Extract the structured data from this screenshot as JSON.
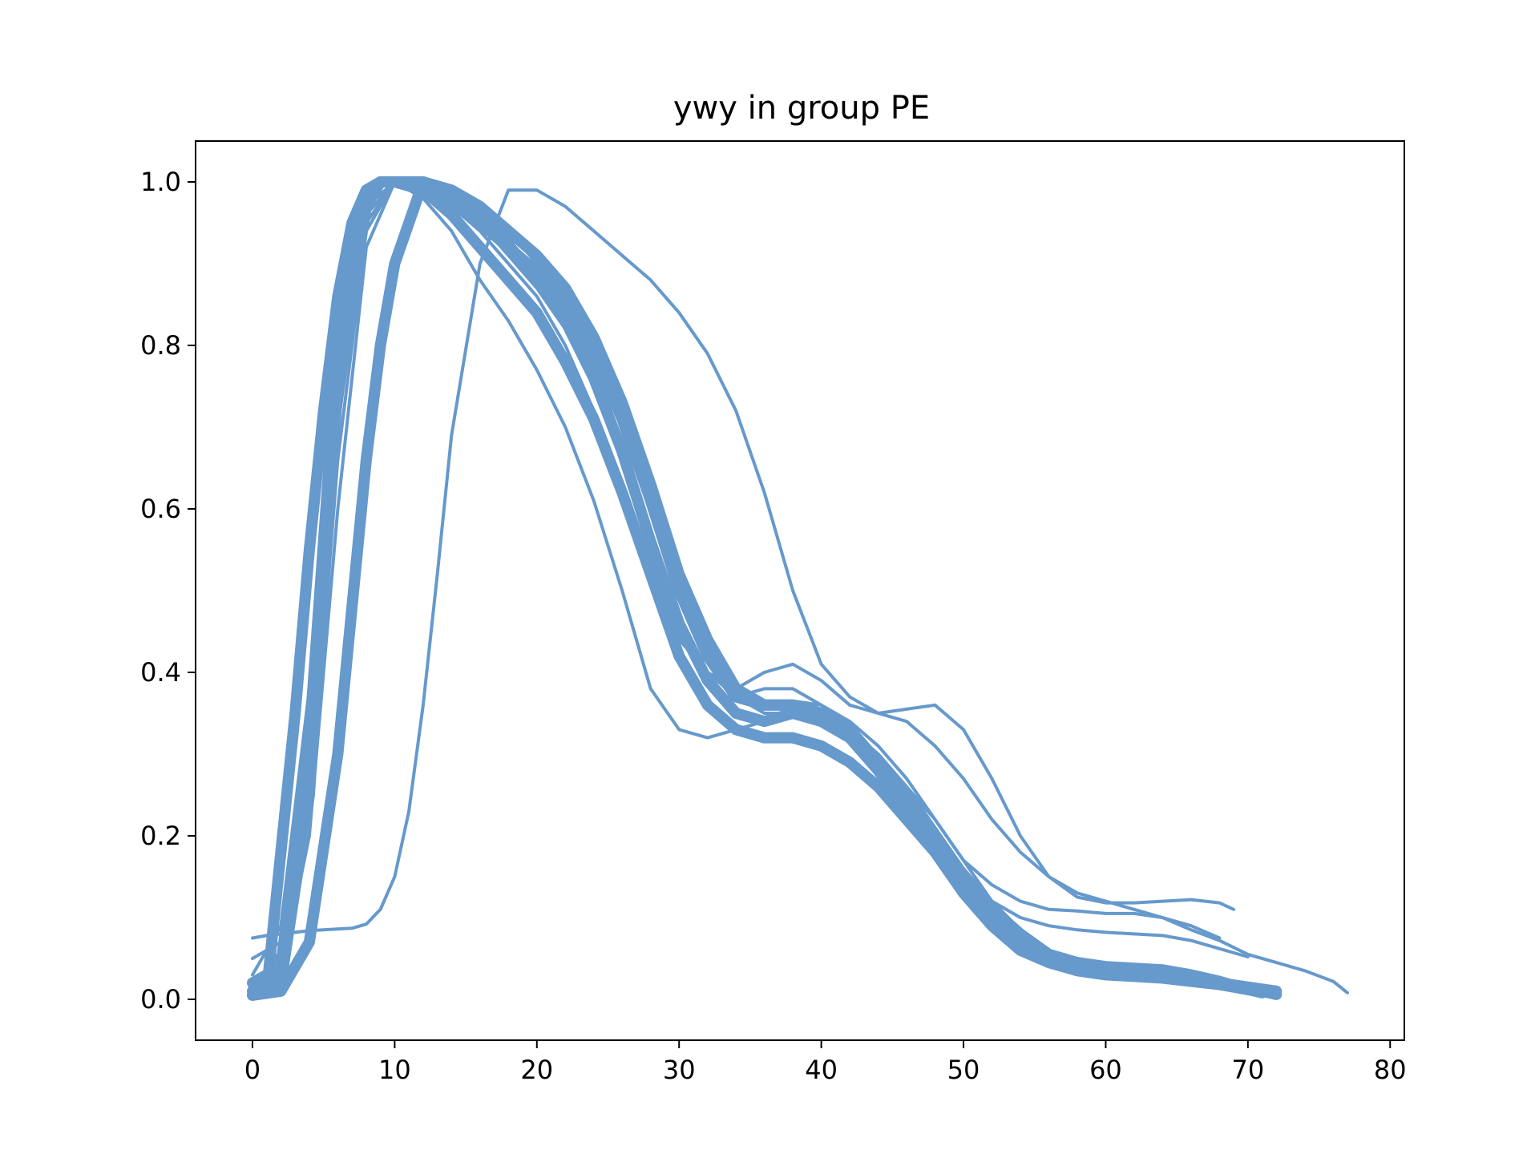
{
  "chart_data": {
    "type": "line",
    "title": "ywy in group PE",
    "xlabel": "",
    "ylabel": "",
    "xlim": [
      -4,
      81
    ],
    "ylim": [
      -0.05,
      1.05
    ],
    "xticks": [
      0,
      10,
      20,
      30,
      40,
      50,
      60,
      70,
      80
    ],
    "yticks": [
      0.0,
      0.2,
      0.4,
      0.6,
      0.8,
      1.0
    ],
    "xtick_labels": [
      "0",
      "10",
      "20",
      "30",
      "40",
      "50",
      "60",
      "70",
      "80"
    ],
    "ytick_labels": [
      "0.0",
      "0.2",
      "0.4",
      "0.6",
      "0.8",
      "1.0"
    ],
    "grid": false,
    "line_color": "#6699cc",
    "series": [
      {
        "x": [
          0,
          2,
          4,
          6,
          8,
          9,
          10,
          12,
          14,
          16,
          18,
          20,
          22,
          24,
          26,
          28,
          30,
          32,
          34,
          36,
          38,
          40,
          42,
          44,
          46,
          48,
          50,
          52,
          54,
          56,
          58,
          60,
          62,
          64,
          66,
          68,
          70,
          72
        ],
        "y": [
          0.01,
          0.02,
          0.25,
          0.75,
          0.97,
          1.0,
          1.0,
          1.0,
          0.98,
          0.95,
          0.92,
          0.89,
          0.85,
          0.79,
          0.71,
          0.61,
          0.5,
          0.42,
          0.37,
          0.36,
          0.36,
          0.35,
          0.33,
          0.29,
          0.24,
          0.19,
          0.14,
          0.1,
          0.07,
          0.05,
          0.04,
          0.035,
          0.03,
          0.03,
          0.025,
          0.02,
          0.015,
          0.01
        ]
      },
      {
        "x": [
          0,
          2,
          4,
          6,
          8,
          9,
          10,
          12,
          14,
          16,
          18,
          20,
          22,
          24,
          26,
          28,
          30,
          32,
          34,
          36,
          38,
          40,
          42,
          44,
          46,
          48,
          50,
          52,
          54,
          56,
          58,
          60,
          62,
          64,
          66,
          68,
          70,
          71
        ],
        "y": [
          0.02,
          0.04,
          0.32,
          0.8,
          0.98,
          1.0,
          1.0,
          1.0,
          0.98,
          0.95,
          0.92,
          0.88,
          0.83,
          0.76,
          0.67,
          0.56,
          0.46,
          0.39,
          0.35,
          0.34,
          0.35,
          0.34,
          0.32,
          0.28,
          0.23,
          0.18,
          0.13,
          0.09,
          0.06,
          0.045,
          0.035,
          0.03,
          0.028,
          0.026,
          0.022,
          0.018,
          0.012,
          0.008
        ]
      },
      {
        "x": [
          0,
          2,
          4,
          6,
          8,
          9,
          10,
          12,
          14,
          16,
          18,
          20,
          22,
          24,
          26,
          28,
          30,
          32,
          34,
          36,
          38,
          40,
          42,
          44,
          46,
          48,
          50,
          52,
          54,
          56,
          58,
          60,
          62,
          64,
          66,
          68,
          70,
          72
        ],
        "y": [
          0.005,
          0.01,
          0.07,
          0.3,
          0.66,
          0.8,
          0.9,
          1.0,
          0.99,
          0.97,
          0.94,
          0.91,
          0.87,
          0.81,
          0.73,
          0.63,
          0.52,
          0.44,
          0.38,
          0.36,
          0.36,
          0.35,
          0.33,
          0.29,
          0.25,
          0.2,
          0.15,
          0.11,
          0.08,
          0.055,
          0.042,
          0.036,
          0.033,
          0.03,
          0.026,
          0.02,
          0.014,
          0.006
        ]
      },
      {
        "x": [
          0,
          1,
          2,
          3,
          4,
          5,
          6,
          7,
          8,
          9,
          10,
          12,
          14,
          16,
          18,
          20,
          22,
          24,
          26,
          28,
          30,
          32,
          34,
          36,
          38,
          40,
          42,
          44,
          46,
          48,
          50,
          52,
          54,
          56,
          58,
          60,
          62,
          64,
          66,
          68,
          70
        ],
        "y": [
          0.005,
          0.01,
          0.18,
          0.35,
          0.55,
          0.72,
          0.86,
          0.95,
          0.99,
          1.0,
          1.0,
          0.99,
          0.96,
          0.92,
          0.88,
          0.84,
          0.78,
          0.71,
          0.62,
          0.52,
          0.42,
          0.36,
          0.33,
          0.32,
          0.32,
          0.31,
          0.29,
          0.26,
          0.22,
          0.18,
          0.14,
          0.1,
          0.075,
          0.055,
          0.045,
          0.04,
          0.038,
          0.036,
          0.03,
          0.022,
          0.012
        ]
      },
      {
        "x": [
          0,
          1,
          2,
          3,
          4,
          5,
          6,
          7,
          8,
          9,
          10,
          11,
          12,
          13,
          14,
          16,
          18,
          20,
          22,
          24,
          26,
          28,
          30,
          32,
          34,
          36,
          38,
          40,
          42,
          44,
          46,
          48,
          50,
          52,
          54,
          56,
          58,
          60,
          62,
          64,
          66,
          68,
          70,
          72,
          74,
          76,
          77
        ],
        "y": [
          0.075,
          0.078,
          0.08,
          0.082,
          0.084,
          0.085,
          0.086,
          0.087,
          0.092,
          0.11,
          0.15,
          0.23,
          0.36,
          0.52,
          0.69,
          0.9,
          0.99,
          0.99,
          0.97,
          0.94,
          0.91,
          0.88,
          0.84,
          0.79,
          0.72,
          0.62,
          0.5,
          0.41,
          0.37,
          0.35,
          0.34,
          0.31,
          0.27,
          0.22,
          0.18,
          0.15,
          0.13,
          0.12,
          0.11,
          0.1,
          0.085,
          0.072,
          0.055,
          0.045,
          0.035,
          0.022,
          0.008
        ]
      },
      {
        "x": [
          0,
          2,
          4,
          6,
          8,
          10,
          12,
          14,
          16,
          18,
          20,
          22,
          24,
          26,
          28,
          30,
          32,
          34,
          36,
          38,
          40,
          42,
          44,
          46,
          48,
          50,
          52,
          54,
          56,
          58,
          60,
          62,
          64,
          66,
          68,
          69
        ],
        "y": [
          0.01,
          0.06,
          0.3,
          0.72,
          0.95,
          1.0,
          0.99,
          0.97,
          0.94,
          0.9,
          0.86,
          0.8,
          0.72,
          0.63,
          0.53,
          0.44,
          0.4,
          0.38,
          0.4,
          0.41,
          0.39,
          0.36,
          0.35,
          0.355,
          0.36,
          0.33,
          0.27,
          0.2,
          0.15,
          0.125,
          0.118,
          0.118,
          0.12,
          0.122,
          0.118,
          0.11
        ]
      },
      {
        "x": [
          0,
          2,
          4,
          6,
          8,
          10,
          12,
          14,
          16,
          18,
          20,
          22,
          24,
          26,
          28,
          30,
          32,
          34,
          36,
          38,
          40,
          42,
          44,
          46,
          48,
          50,
          52,
          54,
          56,
          58,
          60,
          62,
          64,
          66,
          68
        ],
        "y": [
          0.03,
          0.09,
          0.38,
          0.78,
          0.97,
          1.0,
          1.0,
          0.98,
          0.95,
          0.91,
          0.87,
          0.82,
          0.75,
          0.66,
          0.56,
          0.46,
          0.4,
          0.37,
          0.38,
          0.38,
          0.36,
          0.33,
          0.3,
          0.26,
          0.22,
          0.17,
          0.14,
          0.12,
          0.11,
          0.108,
          0.105,
          0.105,
          0.1,
          0.09,
          0.075
        ]
      },
      {
        "x": [
          0,
          2,
          4,
          6,
          8,
          10,
          12,
          14,
          16,
          18,
          20,
          22,
          24,
          26,
          28,
          30,
          32,
          34,
          36,
          38,
          40,
          42,
          44,
          46,
          48,
          50,
          52,
          54,
          56,
          58,
          60,
          62,
          64,
          66,
          68,
          70
        ],
        "y": [
          0.05,
          0.07,
          0.3,
          0.7,
          0.95,
          1.0,
          1.0,
          0.98,
          0.95,
          0.92,
          0.88,
          0.82,
          0.75,
          0.66,
          0.56,
          0.46,
          0.39,
          0.35,
          0.34,
          0.35,
          0.34,
          0.32,
          0.28,
          0.24,
          0.19,
          0.15,
          0.12,
          0.1,
          0.09,
          0.085,
          0.082,
          0.08,
          0.078,
          0.072,
          0.062,
          0.052
        ]
      },
      {
        "x": [
          0,
          2,
          4,
          6,
          8,
          10,
          12,
          14,
          16,
          18,
          20,
          22,
          24,
          26,
          28,
          30,
          32,
          34,
          36,
          38,
          40,
          42,
          44,
          46,
          48,
          50,
          52,
          54,
          56,
          58,
          60,
          62,
          64,
          66,
          68,
          70,
          72
        ],
        "y": [
          0.015,
          0.03,
          0.2,
          0.6,
          0.92,
          1.0,
          1.0,
          0.99,
          0.97,
          0.94,
          0.9,
          0.86,
          0.8,
          0.73,
          0.64,
          0.53,
          0.44,
          0.38,
          0.36,
          0.365,
          0.36,
          0.34,
          0.31,
          0.27,
          0.22,
          0.17,
          0.12,
          0.085,
          0.06,
          0.045,
          0.035,
          0.03,
          0.028,
          0.025,
          0.02,
          0.013,
          0.005
        ]
      },
      {
        "x": [
          0,
          2,
          4,
          6,
          8,
          10,
          12,
          14,
          16,
          18,
          20,
          22,
          24,
          26,
          28,
          30,
          32,
          34,
          36,
          38,
          40,
          42,
          44,
          46,
          48,
          50,
          52,
          54,
          56,
          58,
          60,
          62,
          64,
          66,
          68,
          70
        ],
        "y": [
          0.02,
          0.05,
          0.28,
          0.7,
          0.96,
          1.0,
          0.98,
          0.94,
          0.88,
          0.83,
          0.77,
          0.7,
          0.61,
          0.5,
          0.38,
          0.33,
          0.32,
          0.33,
          0.34,
          0.345,
          0.34,
          0.32,
          0.28,
          0.24,
          0.19,
          0.14,
          0.1,
          0.07,
          0.05,
          0.04,
          0.035,
          0.033,
          0.03,
          0.025,
          0.018,
          0.01
        ]
      },
      {
        "x": [
          0,
          2,
          4,
          6,
          8,
          10,
          12,
          14,
          16,
          18,
          20,
          22,
          24,
          26,
          28,
          30,
          32,
          34,
          36,
          38,
          40,
          42,
          44,
          46,
          48,
          50,
          52,
          54,
          56,
          58,
          60,
          62,
          64,
          66,
          68,
          70,
          71
        ],
        "y": [
          0.01,
          0.02,
          0.22,
          0.66,
          0.94,
          1.0,
          1.0,
          0.99,
          0.96,
          0.93,
          0.89,
          0.84,
          0.78,
          0.7,
          0.6,
          0.5,
          0.42,
          0.37,
          0.35,
          0.35,
          0.345,
          0.33,
          0.3,
          0.26,
          0.21,
          0.16,
          0.12,
          0.085,
          0.06,
          0.045,
          0.038,
          0.034,
          0.03,
          0.027,
          0.022,
          0.014,
          0.008
        ]
      }
    ]
  }
}
